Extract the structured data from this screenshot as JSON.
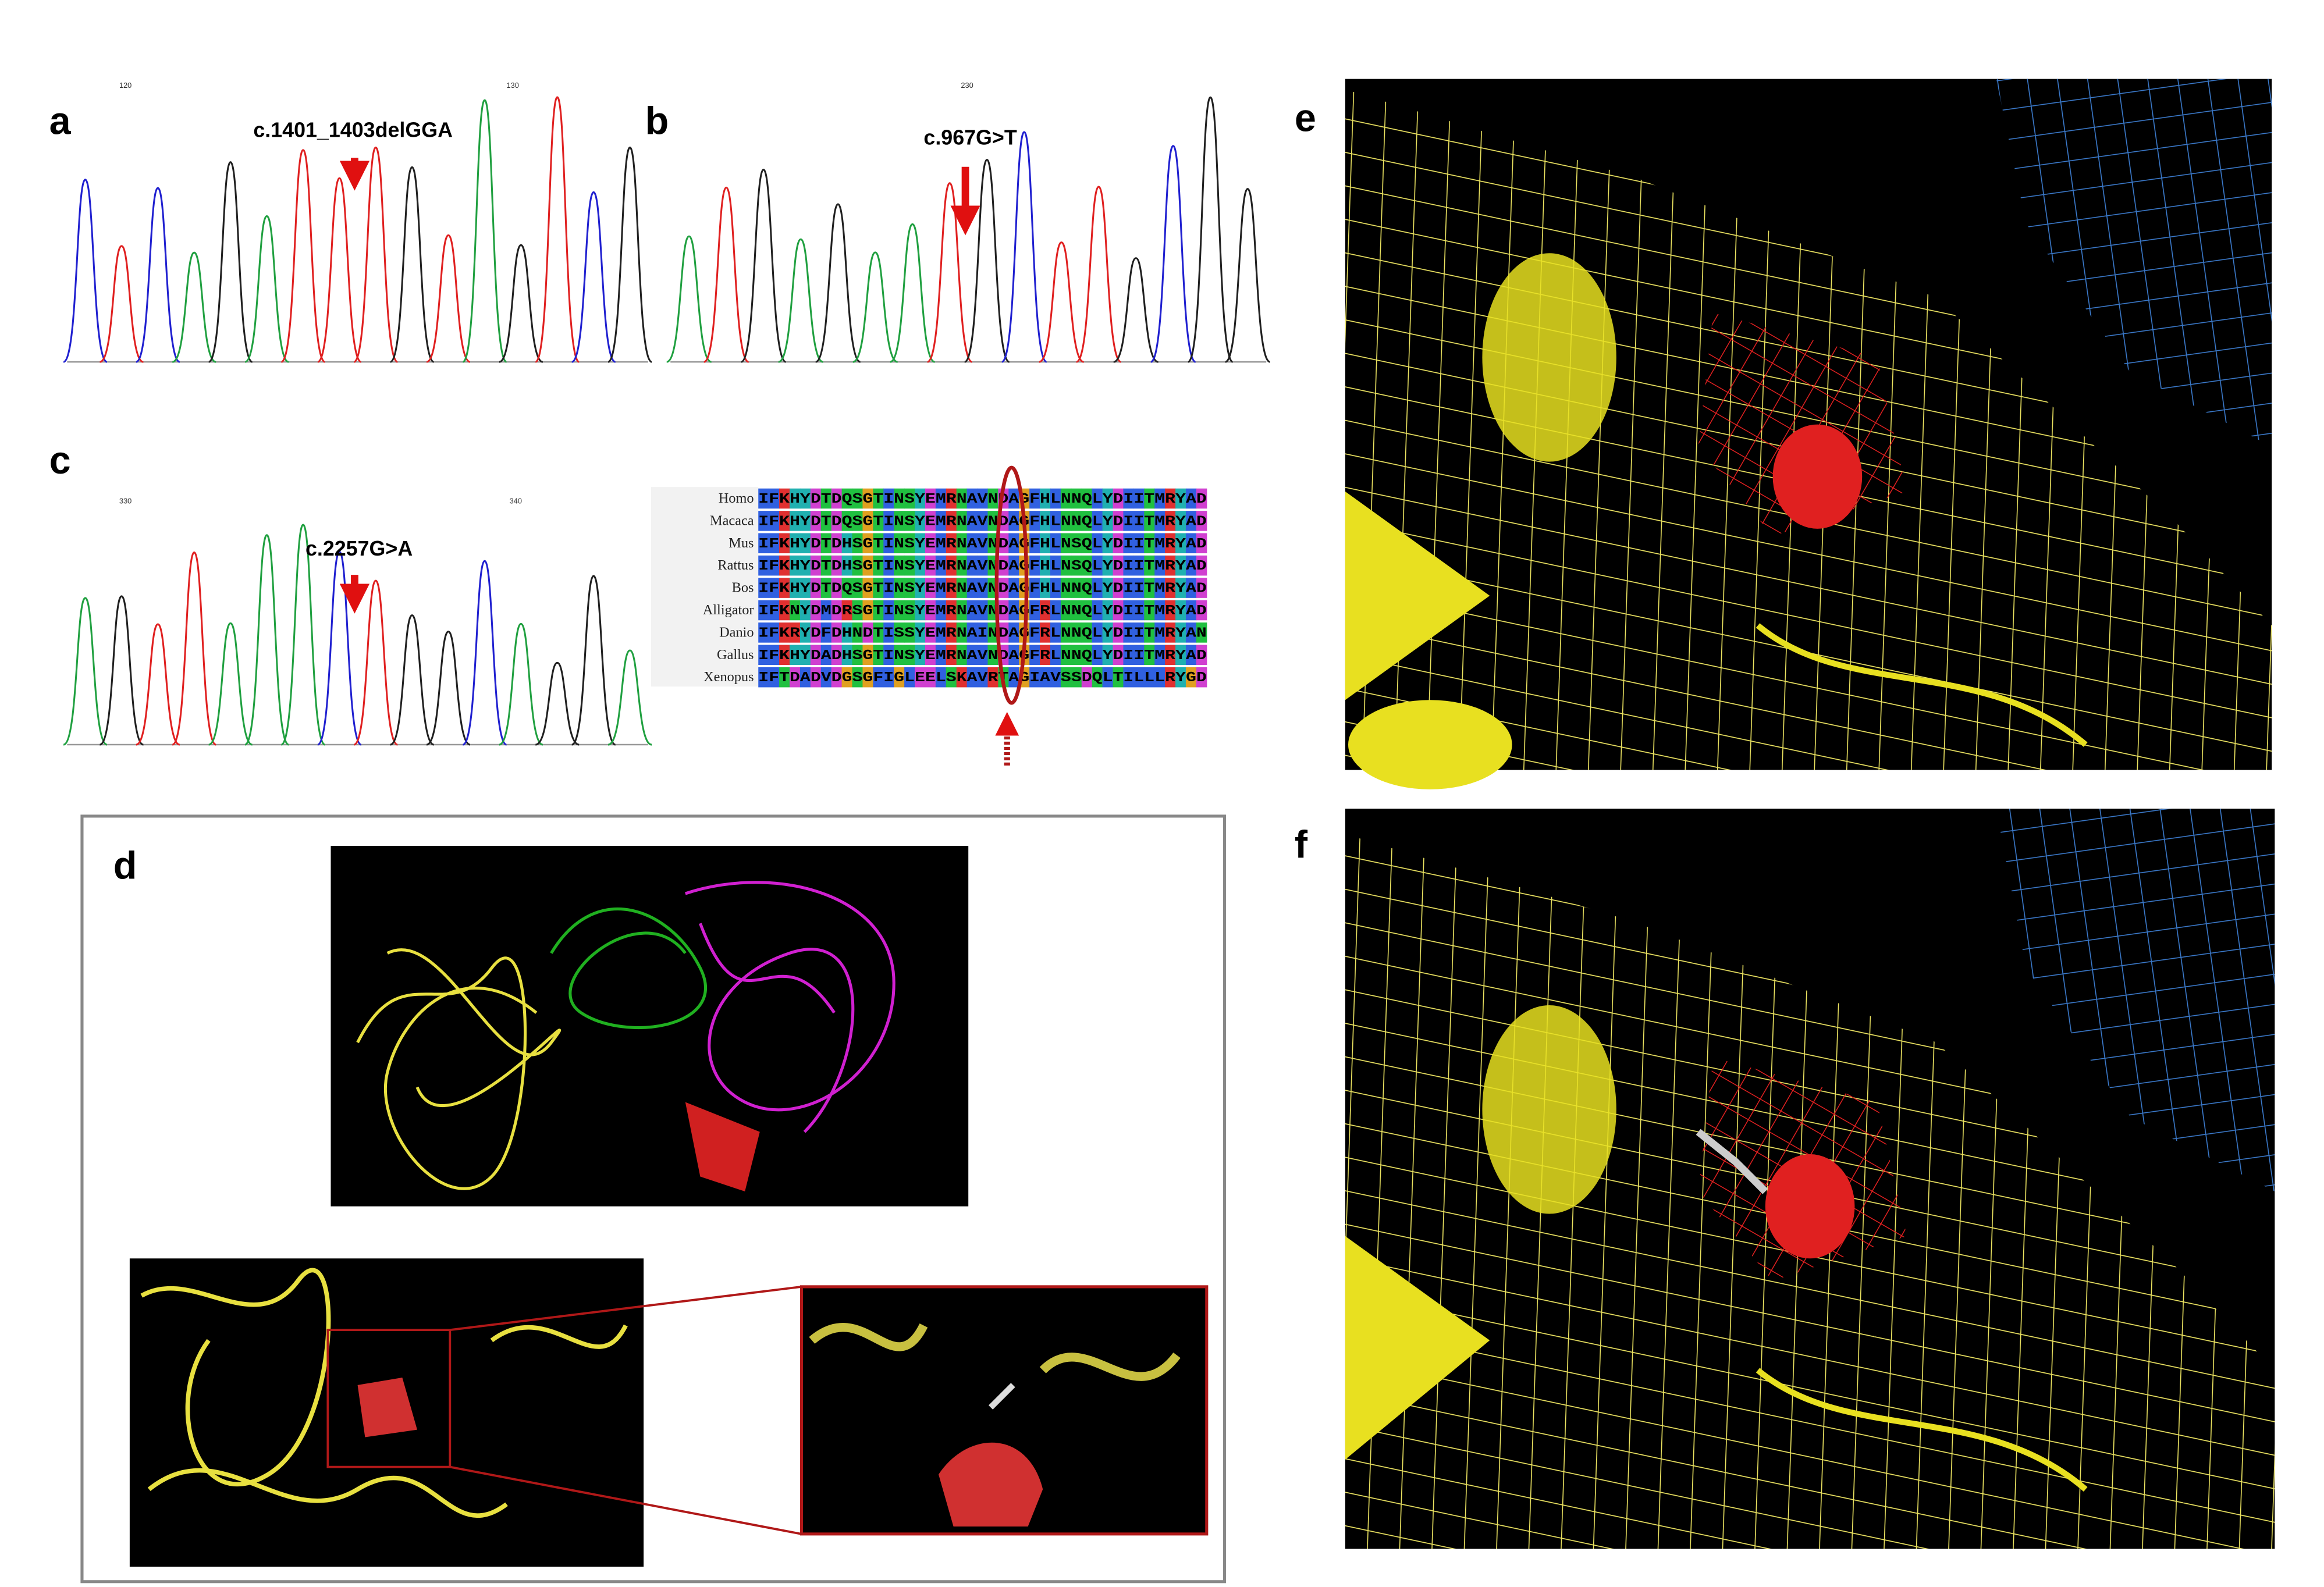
{
  "panels": {
    "a": {
      "label": "a",
      "mutation": "c.1401_1403delGGA",
      "positions": [
        "120",
        "130"
      ]
    },
    "b": {
      "label": "b",
      "mutation": "c.967G>T",
      "positions": [
        "230"
      ]
    },
    "c": {
      "label": "c",
      "mutation": "c.2257G>A",
      "positions": [
        "330",
        "340"
      ]
    },
    "alignment": {
      "species": [
        "Homo",
        "Macaca",
        "Mus",
        "Rattus",
        "Bos",
        "Alligator",
        "Danio",
        "Gallus",
        "Xenopus"
      ],
      "sequences": [
        "IFKHYDTDQSGTINSYEMRNAVNDAGFHLNNQLYDIITMRYAD",
        "IFKHYDTDQSGTINSYEMRNAVNDAGFHLNNQLYDIITMRYAD",
        "IFKHYDTDHSGTINSYEMRNAVNDAGFHLNSQLYDIITMRYAD",
        "IFKHYDTDHSGTINSYEMRNAVNDAGFHLNSQLYDIITMRYAD",
        "IFKHYDTDQSGTINSYEMRNAVNDAGFHLNNQLYDIITMRYAD",
        "IFKNYDMDRSGTINSYEMRNAVNDAGFRLNNQLYDIITMRYAD",
        "IFKRYDFDHNDTISSYEMRNAINDAGFRLNNQLYDIITMRYAN",
        "IFKHYDADHSGTINSYEMRNAVNDAGFRLNNQLYDIITMRYAD",
        "IFTDADVDGSGFIGLEELSKAVRTAGIAVSSDQLTILLLRYGD"
      ]
    },
    "d": {
      "label": "d"
    },
    "e": {
      "label": "e"
    },
    "f": {
      "label": "f"
    }
  }
}
